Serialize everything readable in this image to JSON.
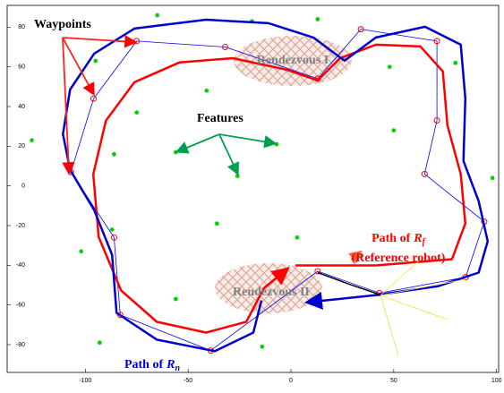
{
  "chart_data": {
    "type": "scatter",
    "xlim": [
      -138,
      101
    ],
    "ylim": [
      -94,
      91
    ],
    "xticks": [
      -100,
      -50,
      0,
      50,
      100
    ],
    "yticks": [
      -80,
      -60,
      -40,
      -20,
      0,
      20,
      40,
      60,
      80
    ],
    "series": [
      {
        "marker": "star",
        "color": "#00cc00",
        "x": [
          -65,
          -19,
          13,
          -95,
          48,
          80,
          -41,
          -75,
          -126,
          -86,
          -56,
          -26,
          -7,
          50,
          98,
          -87,
          -36,
          3,
          -102,
          34,
          -56,
          -93,
          -14
        ],
        "y": [
          86,
          83,
          84,
          63,
          60,
          62,
          48,
          37,
          23,
          16,
          17,
          5,
          21,
          28,
          4,
          -22,
          -19,
          -26,
          -33,
          -35,
          -57,
          -79,
          -81
        ]
      },
      {
        "marker": "circle",
        "color": "#ff0000",
        "line_color": "#0000ff",
        "line_width": 0.8,
        "closed": true,
        "x": [
          -75,
          -32,
          13,
          34,
          71,
          71,
          65,
          94,
          85,
          43,
          13,
          -39,
          -83,
          -86,
          -107,
          -96
        ],
        "y": [
          73,
          70,
          54,
          79,
          73,
          33,
          6,
          -18,
          -46,
          -54,
          -43,
          -83,
          -65,
          -26,
          7,
          44
        ]
      },
      {
        "color": "#ff0000",
        "line_width": 2.5,
        "arrow": true,
        "x": [
          2.2,
          41.3,
          78.3,
          84.8,
          82.6,
          76.1,
          73.9,
          63.0,
          41.3,
          23.9,
          13.0,
          -2.2,
          -28.3,
          -54.3,
          -76.1,
          -90.0,
          -96.1,
          -93.5,
          -82.6,
          -65.2,
          -41.3,
          -21.7,
          -13.0,
          -2.2
        ],
        "y": [
          -40.1,
          -40.1,
          -36.9,
          -18.9,
          5.9,
          30.6,
          57.7,
          70.3,
          71.2,
          64.4,
          53.2,
          58.6,
          64.4,
          62.2,
          52.3,
          32.9,
          5.9,
          -25.7,
          -52.7,
          -68.5,
          -73.9,
          -68.5,
          -51.4,
          -42.3
        ]
      },
      {
        "color": "#0000cc",
        "line_width": 2.5,
        "arrow": true,
        "x": [
          -14.3,
          -18.3,
          -37.0,
          -65.2,
          -84.8,
          -87.0,
          -95.7,
          -107.4,
          -110.9,
          -107.4,
          -95.7,
          -76.1,
          -41.3,
          -10.9,
          10.9,
          26.1,
          41.3,
          65.2,
          82.6,
          84.8,
          83.9,
          91.3,
          95.7,
          91.3,
          71.7,
          41.3,
          8.7
        ],
        "y": [
          -57.7,
          -73.9,
          -83.3,
          -77.5,
          -64.0,
          -34.7,
          -12.2,
          8.1,
          26.1,
          48.6,
          66.7,
          79.3,
          83.8,
          82.0,
          74.8,
          63.1,
          74.8,
          80.2,
          71.2,
          44.1,
          12.6,
          -7.7,
          -27.9,
          -43.7,
          -50.5,
          -55.0,
          -58.6
        ]
      },
      {
        "color": "#000000",
        "line_width": 1.5,
        "x": [
          13,
          28.3,
          43.5
        ],
        "y": [
          -43.7,
          -49.5,
          -54.9
        ]
      }
    ],
    "annotations": [
      {
        "text": "Waypoints",
        "color": "#000000"
      },
      {
        "text": "Features",
        "color": "#000000"
      },
      {
        "text": "Rendezvous I",
        "color": "#808080"
      },
      {
        "text": "Rendezvous II",
        "color": "#808080"
      },
      {
        "text": "Path of",
        "var": "R",
        "sub": "f",
        "color": "#ff0000"
      },
      {
        "text": "(Reference robot)",
        "color": "#ff0000"
      },
      {
        "text": "Path of",
        "var": "R",
        "sub": "n",
        "color": "#0000cc"
      }
    ]
  }
}
